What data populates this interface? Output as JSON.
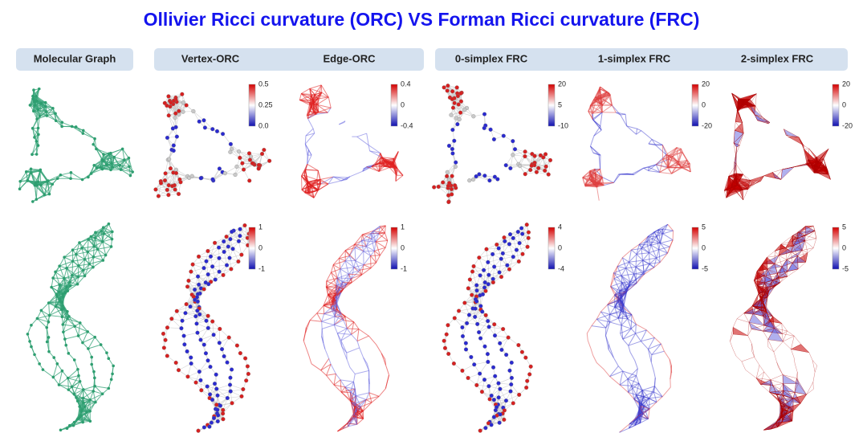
{
  "title": "Ollivier Ricci curvature (ORC)  VS  Forman Ricci curvature (FRC)",
  "headers": [
    "Molecular Graph",
    "Vertex-ORC",
    "Edge-ORC",
    "0-simplex FRC",
    "1-simplex FRC",
    "2-simplex FRC"
  ],
  "colorbars": [
    [
      [
        "0.5",
        "0.25",
        "0.0"
      ],
      [
        "0.4",
        "0",
        "-0.4"
      ],
      [
        "20",
        "5",
        "-10"
      ],
      [
        "20",
        "0",
        "-20"
      ],
      [
        "20",
        "0",
        "-20"
      ]
    ],
    [
      [
        "1",
        "0",
        "-1"
      ],
      [
        "1",
        "0",
        "-1"
      ],
      [
        "4",
        "0",
        "-4"
      ],
      [
        "5",
        "0",
        "-5"
      ],
      [
        "5",
        "0",
        "-5"
      ]
    ]
  ]
}
